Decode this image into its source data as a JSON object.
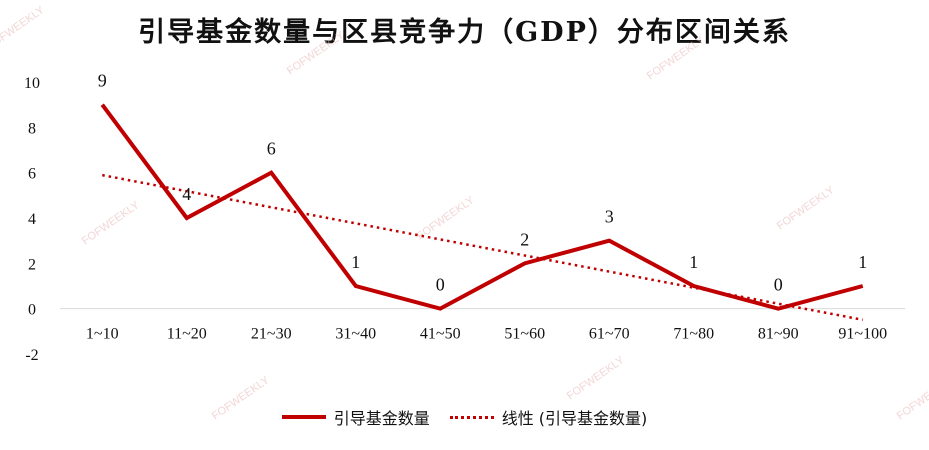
{
  "chart_data": {
    "type": "line",
    "title": "引导基金数量与区县竞争力（GDP）分布区间关系",
    "categories": [
      "1~10",
      "11~20",
      "21~30",
      "31~40",
      "41~50",
      "51~60",
      "61~70",
      "71~80",
      "81~90",
      "91~100"
    ],
    "series": [
      {
        "name": "引导基金数量",
        "values": [
          9,
          4,
          6,
          1,
          0,
          2,
          3,
          1,
          0,
          1
        ],
        "color": "#C00000"
      }
    ],
    "trendline": {
      "name": "线性 (引导基金数量)",
      "type": "linear",
      "color": "#C00000"
    },
    "ylim": [
      -2,
      10
    ],
    "yticks": [
      -2,
      0,
      2,
      4,
      6,
      8,
      10
    ],
    "legend_position": "bottom",
    "grid": false,
    "watermark": "FOFWEEKLY"
  }
}
